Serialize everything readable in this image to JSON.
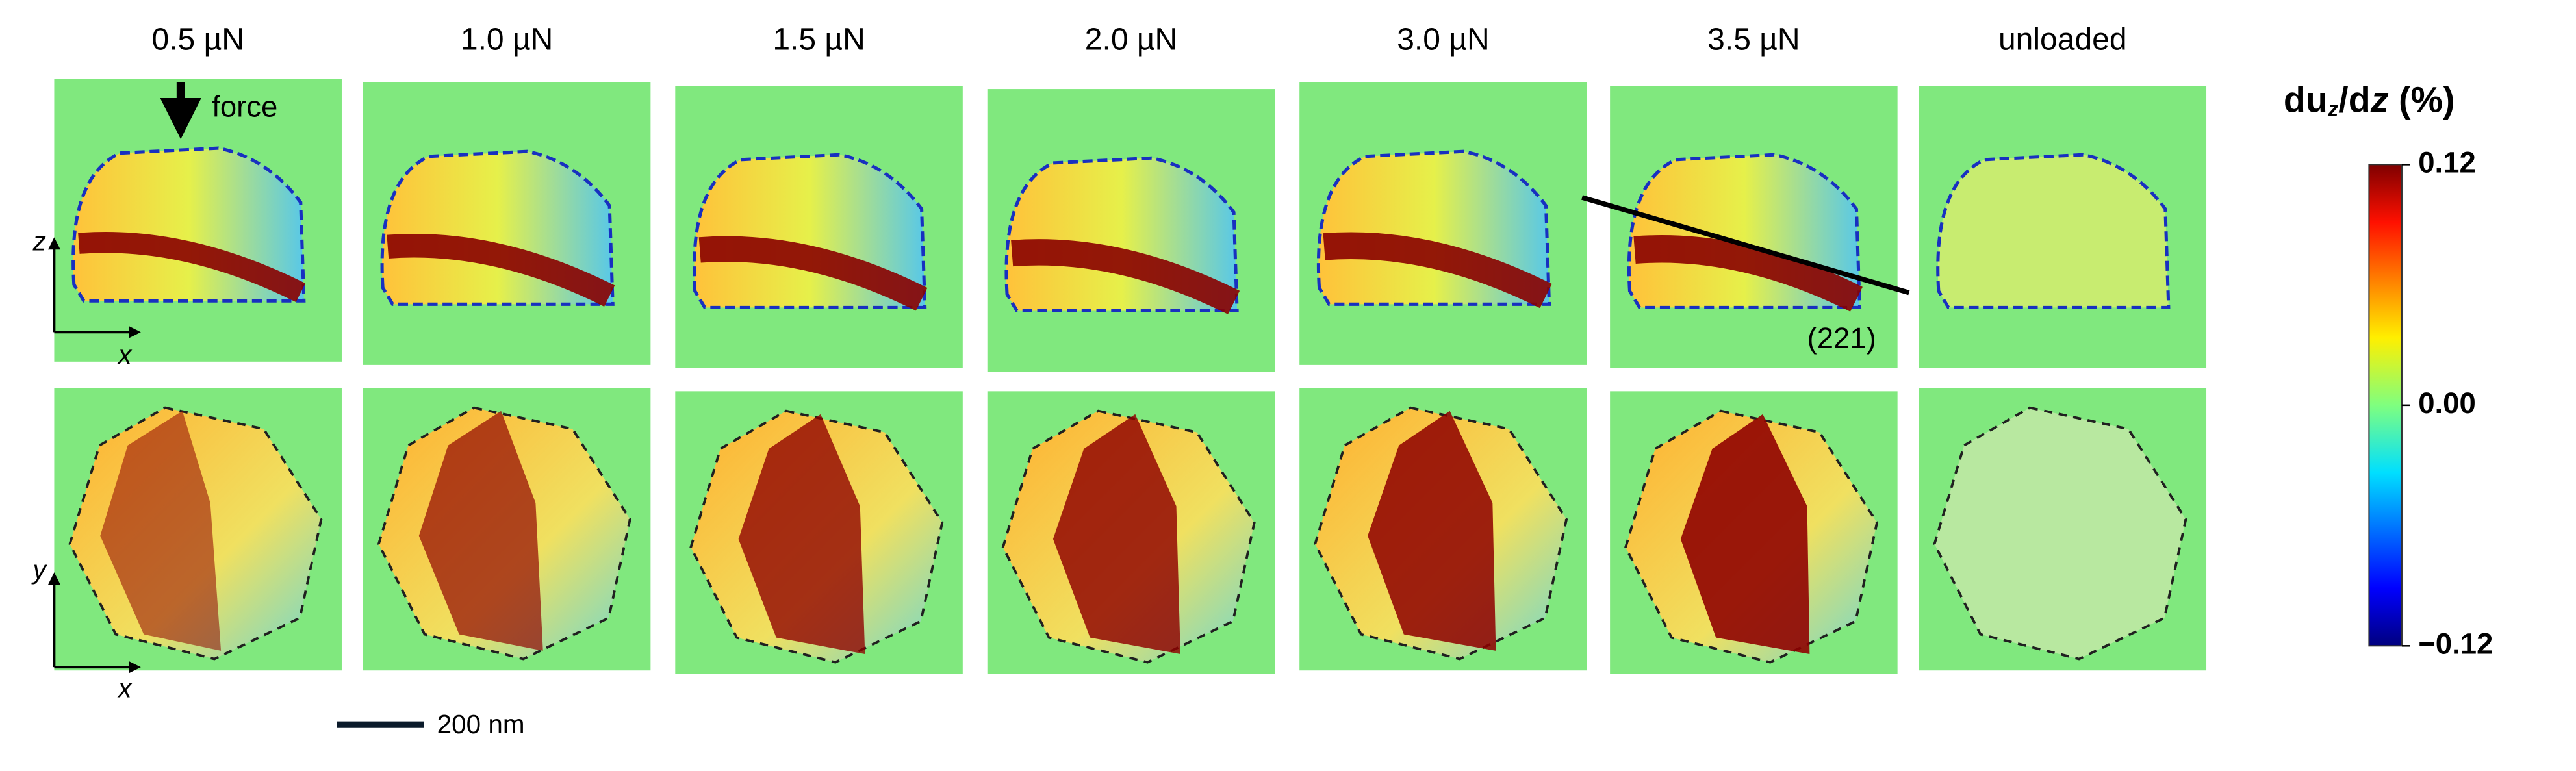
{
  "columns": [
    "0.5 µN",
    "1.0 µN",
    "1.5 µN",
    "2.0 µN",
    "3.0 µN",
    "3.5 µN",
    "unloaded"
  ],
  "annotations": {
    "force": "force",
    "plane": "(221)",
    "scale_bar": "200 nm"
  },
  "axes": {
    "top_vertical": "z",
    "top_horizontal": "x",
    "bottom_vertical": "y",
    "bottom_horizontal": "x"
  },
  "colorbar": {
    "title_parts": [
      "du",
      "z",
      "/d",
      "z",
      " (%)"
    ],
    "clim": [
      -0.12,
      0.12
    ],
    "ticks": [
      0.12,
      {
        "value": 0,
        "label": "0.00"
      },
      {
        "value": -0.12,
        "label": "−0.12"
      }
    ]
  }
}
